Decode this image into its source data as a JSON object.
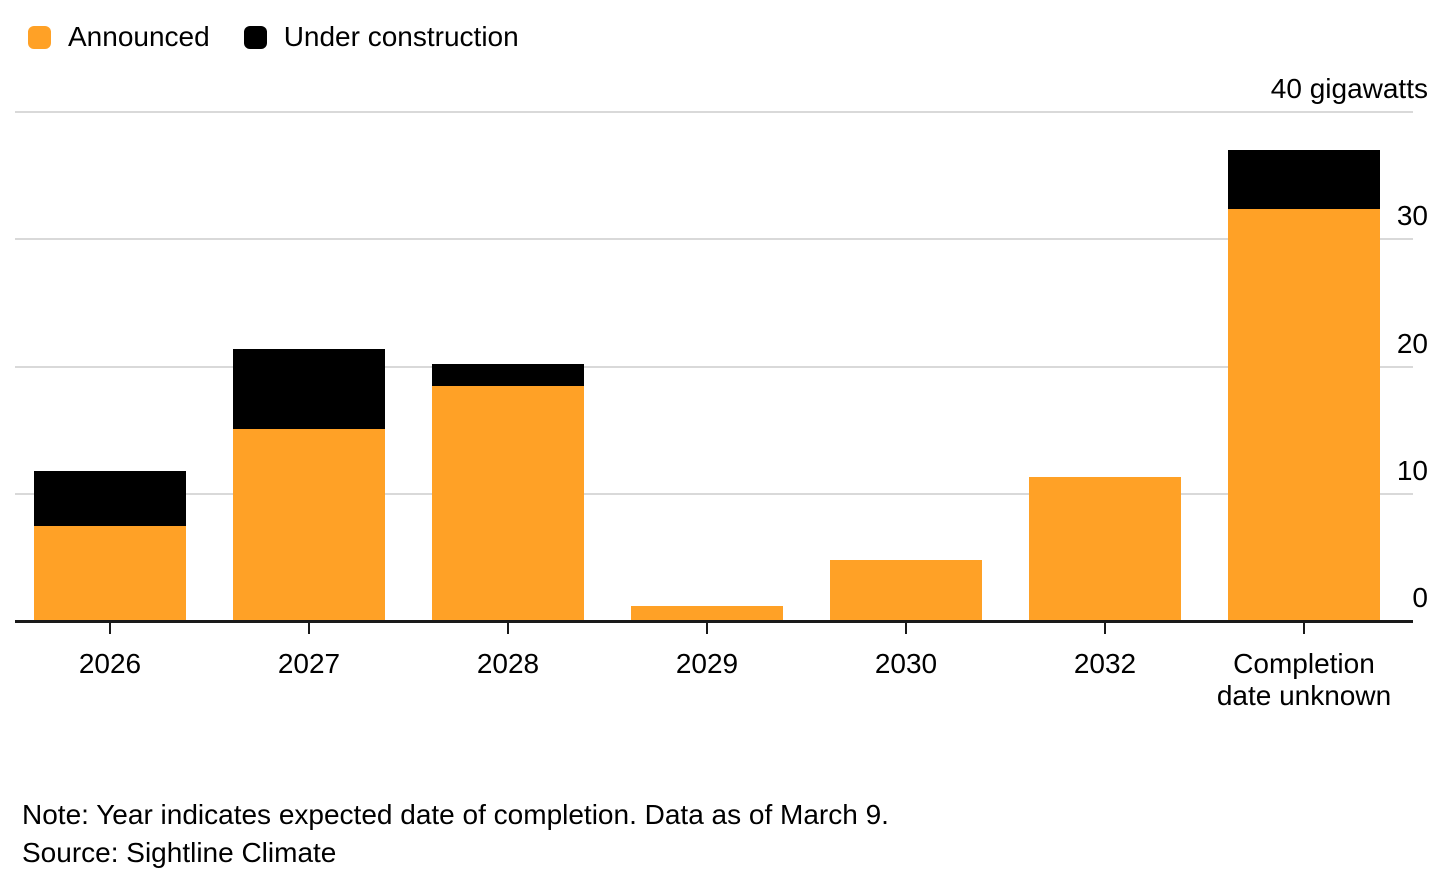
{
  "legend": {
    "items": [
      {
        "label": "Announced",
        "color": "#FFA126"
      },
      {
        "label": "Under construction",
        "color": "#000000"
      }
    ]
  },
  "chart_data": {
    "type": "bar",
    "stacked": true,
    "unit": "gigawatts",
    "categories": [
      "2026",
      "2027",
      "2028",
      "2029",
      "2030",
      "2032",
      "Completion date unknown"
    ],
    "series": [
      {
        "name": "Announced",
        "color": "#FFA126",
        "values": [
          7.5,
          15.1,
          18.5,
          1.2,
          4.8,
          11.3,
          32.4
        ]
      },
      {
        "name": "Under construction",
        "color": "#000000",
        "values": [
          4.3,
          6.3,
          1.7,
          0,
          0,
          0,
          4.6
        ]
      }
    ],
    "totals": [
      11.8,
      21.4,
      20.2,
      1.2,
      4.8,
      11.3,
      37.0
    ],
    "ylim": [
      0,
      40
    ],
    "yticks": [
      0,
      10,
      20,
      30,
      40
    ],
    "ytick_labels": [
      "0",
      "10",
      "20",
      "30",
      "40 gigawatts"
    ],
    "grid": true,
    "gridline_color": "#d9d9d9",
    "baseline_color": "#1a1a1a",
    "legend_position": "top-left"
  },
  "footer": {
    "note": "Note: Year indicates expected date of completion. Data as of March 9.",
    "source": "Source: Sightline Climate"
  }
}
